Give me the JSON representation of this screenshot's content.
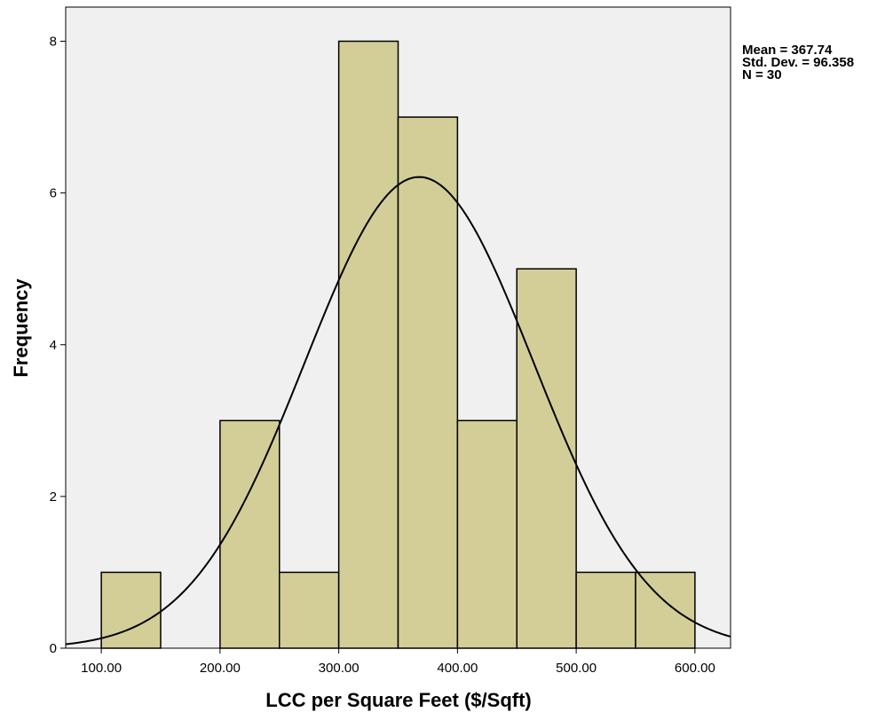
{
  "chart_data": {
    "type": "bar",
    "subtype": "histogram",
    "xlabel": "LCC per Square Feet ($/Sqft)",
    "ylabel": "Frequency",
    "bins": [
      {
        "start": 100,
        "end": 150,
        "count": 1
      },
      {
        "start": 150,
        "end": 200,
        "count": 0
      },
      {
        "start": 200,
        "end": 250,
        "count": 3
      },
      {
        "start": 250,
        "end": 300,
        "count": 1
      },
      {
        "start": 300,
        "end": 350,
        "count": 8
      },
      {
        "start": 350,
        "end": 400,
        "count": 7
      },
      {
        "start": 400,
        "end": 450,
        "count": 3
      },
      {
        "start": 450,
        "end": 500,
        "count": 5
      },
      {
        "start": 500,
        "end": 550,
        "count": 1
      },
      {
        "start": 550,
        "end": 600,
        "count": 1
      }
    ],
    "xlim": [
      70,
      630
    ],
    "ylim": [
      0,
      8.45
    ],
    "xticks": [
      100,
      200,
      300,
      400,
      500,
      600
    ],
    "xtick_labels": [
      "100.00",
      "200.00",
      "300.00",
      "400.00",
      "500.00",
      "600.00"
    ],
    "yticks": [
      0,
      2,
      4,
      6,
      8
    ],
    "ytick_labels": [
      "0",
      "2",
      "4",
      "6",
      "8"
    ],
    "normal_curve": {
      "mean": 367.74,
      "std": 96.358,
      "n": 30,
      "bin_width": 50
    },
    "stats": {
      "mean_label": "Mean = 367.74",
      "std_label": "Std. Dev. = 96.358",
      "n_label": "N = 30"
    },
    "colors": {
      "bar_fill": "#d3ce98",
      "bar_stroke": "#000000",
      "plot_background": "#f0f0f0",
      "curve": "#000000"
    }
  }
}
